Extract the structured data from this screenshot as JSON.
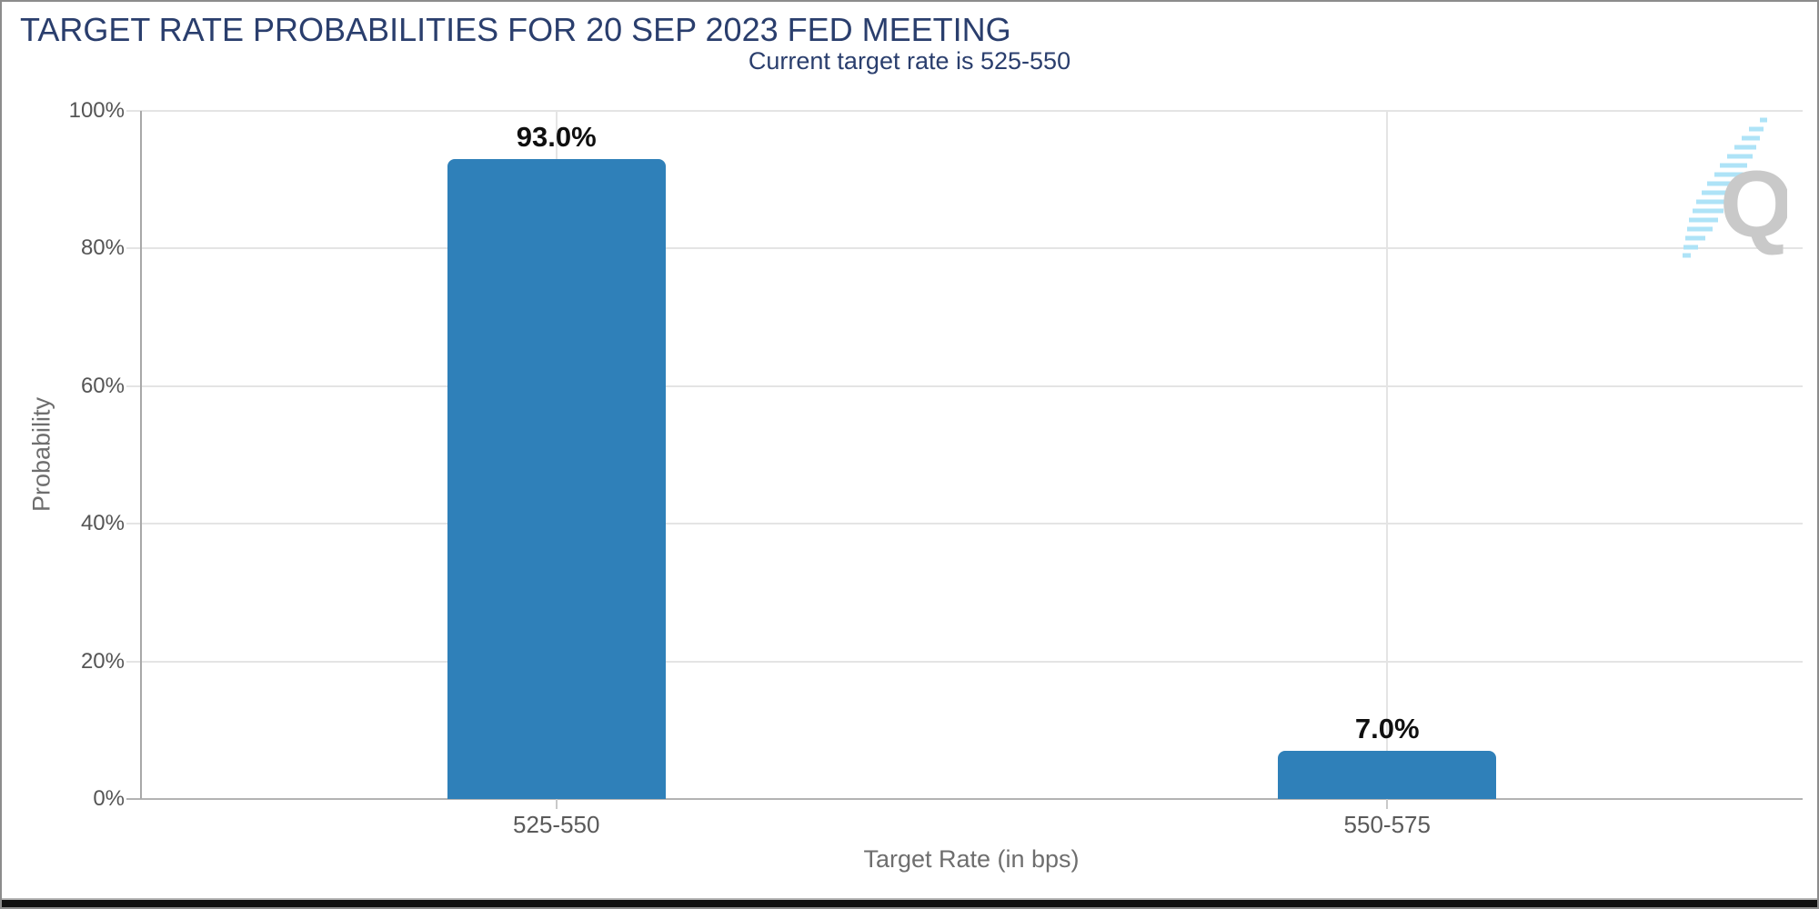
{
  "chart": {
    "title": "TARGET RATE PROBABILITIES FOR 20 SEP 2023 FED MEETING",
    "subtitle": "Current target rate is 525-550",
    "y_axis_title": "Probability",
    "x_axis_title": "Target Rate (in bps)"
  },
  "chart_data": {
    "type": "bar",
    "title": "TARGET RATE PROBABILITIES FOR 20 SEP 2023 FED MEETING",
    "subtitle": "Current target rate is 525-550",
    "categories": [
      "525-550",
      "550-575"
    ],
    "values": [
      93.0,
      7.0
    ],
    "value_labels": [
      "93.0%",
      "7.0%"
    ],
    "xlabel": "Target Rate (in bps)",
    "ylabel": "Probability",
    "ylim": [
      0,
      100
    ],
    "ytick_values": [
      100,
      80,
      60,
      40,
      20,
      0
    ],
    "ytick_labels": [
      "100%",
      "80%",
      "60%",
      "40%",
      "20%",
      "0%"
    ],
    "grid": true,
    "legend": false,
    "bar_color": "#2f80b9"
  },
  "colors": {
    "title_navy": "#2a3e6d",
    "bar_blue": "#2f80b9",
    "grid_line": "#e4e4e4",
    "axis_line": "#a8a8a8",
    "baseline": "#b3b3b3",
    "tick": "#c9c9c9",
    "axis_label_gray": "#5a5a5a",
    "axis_title_gray": "#6e6e6e",
    "data_label_black": "#0f0f0f",
    "logo_gray": "#c9c9c9",
    "logo_cyan": "#aee3f7",
    "frame_border": "#8c8c8c",
    "bottom_bar": "#101010"
  },
  "logo": {
    "letter": "Q"
  }
}
